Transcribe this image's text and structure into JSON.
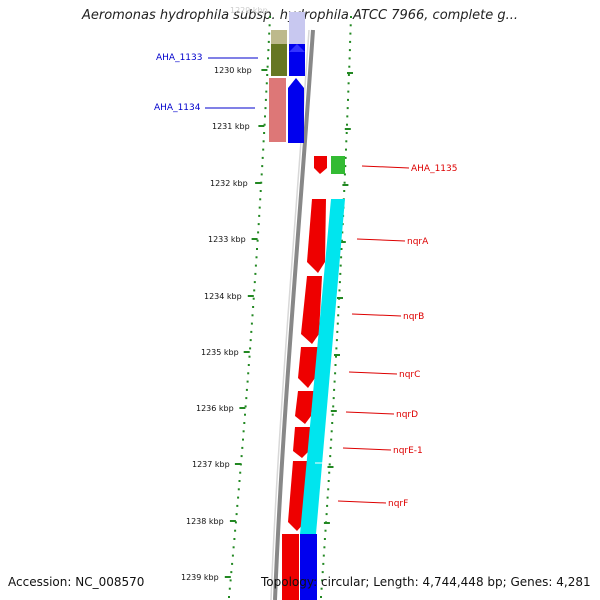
{
  "title": "Aeromonas hydrophila subsp. hydrophila ATCC 7966, complete g...",
  "footer": {
    "accession": "Accession: NC_008570",
    "summary": "Topology: circular; Length: 4,744,448 bp; Genes: 4,281"
  },
  "ruler": {
    "top_faded_label": "1229 kbp",
    "ticks": [
      "1230 kbp",
      "1231 kbp",
      "1232 kbp",
      "1233 kbp",
      "1234 kbp",
      "1235 kbp",
      "1236 kbp",
      "1237 kbp",
      "1238 kbp",
      "1239 kbp"
    ]
  },
  "genes_left": [
    {
      "name": "AHA_1133",
      "color": "#0000cc"
    },
    {
      "name": "AHA_1134",
      "color": "#0000cc"
    }
  ],
  "genes_right": [
    {
      "name": "AHA_1135",
      "color": "#dd0000"
    },
    {
      "name": "nqrA",
      "color": "#dd0000"
    },
    {
      "name": "nqrB",
      "color": "#dd0000"
    },
    {
      "name": "nqrC",
      "color": "#dd0000"
    },
    {
      "name": "nqrD",
      "color": "#dd0000"
    },
    {
      "name": "nqrE-1",
      "color": "#dd0000"
    },
    {
      "name": "nqrF",
      "color": "#dd0000"
    }
  ],
  "colors": {
    "cds": "#ee0000",
    "gene": "#0000ee",
    "misc": "#00e5ee",
    "rna": "#33bb33",
    "olive": "#667722",
    "pink": "#dd7777",
    "ruler_dots": "#228822",
    "backbone": "#888888"
  }
}
